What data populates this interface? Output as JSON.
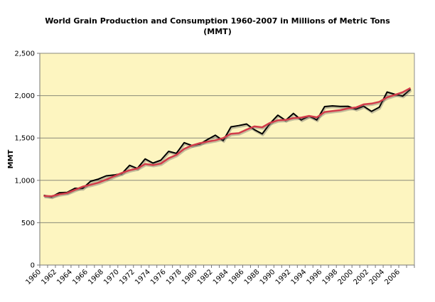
{
  "chart_data": {
    "type": "line",
    "title_line1": "World Grain Production and Consumption 1960-2007 in Millions of Metric Tons",
    "title_line2": "(MMT)",
    "xlabel": "",
    "ylabel": "MMT",
    "ylim": [
      0,
      2500
    ],
    "yticks": [
      0,
      500,
      1000,
      1500,
      2000,
      2500
    ],
    "ytick_labels": [
      "0",
      "500",
      "1,000",
      "1,500",
      "2,000",
      "2,500"
    ],
    "grid": true,
    "legend": "none",
    "colors": {
      "plot_background": "#fdf5c0",
      "gridline": "#8a8a7a",
      "production": "#000000",
      "consumption": "#d23c4a"
    },
    "x": [
      1960,
      1961,
      1962,
      1963,
      1964,
      1965,
      1966,
      1967,
      1968,
      1969,
      1970,
      1971,
      1972,
      1973,
      1974,
      1975,
      1976,
      1977,
      1978,
      1979,
      1980,
      1981,
      1982,
      1983,
      1984,
      1985,
      1986,
      1987,
      1988,
      1989,
      1990,
      1991,
      1992,
      1993,
      1994,
      1995,
      1996,
      1997,
      1998,
      1999,
      2000,
      2001,
      2002,
      2003,
      2004,
      2005,
      2006,
      2007
    ],
    "xtick_labels": [
      "1960",
      "1962",
      "1964",
      "1966",
      "1968",
      "1970",
      "1972",
      "1974",
      "1976",
      "1978",
      "1980",
      "1982",
      "1984",
      "1986",
      "1988",
      "1990",
      "1992",
      "1994",
      "1996",
      "1998",
      "2000",
      "2002",
      "2004",
      "2006"
    ],
    "series": [
      {
        "name": "Production",
        "values": [
          824,
          805,
          853,
          857,
          906,
          905,
          989,
          1014,
          1053,
          1063,
          1079,
          1177,
          1141,
          1253,
          1204,
          1237,
          1342,
          1319,
          1445,
          1411,
          1429,
          1482,
          1533,
          1469,
          1632,
          1647,
          1665,
          1598,
          1549,
          1671,
          1769,
          1708,
          1790,
          1713,
          1760,
          1713,
          1871,
          1879,
          1873,
          1874,
          1840,
          1875,
          1815,
          1863,
          2043,
          2016,
          1995,
          2075
        ]
      },
      {
        "name": "Consumption",
        "values": [
          816,
          813,
          835,
          850,
          888,
          926,
          948,
          972,
          1008,
          1048,
          1087,
          1119,
          1139,
          1193,
          1180,
          1198,
          1261,
          1300,
          1372,
          1412,
          1439,
          1457,
          1474,
          1499,
          1550,
          1557,
          1599,
          1637,
          1627,
          1679,
          1709,
          1713,
          1736,
          1741,
          1761,
          1744,
          1807,
          1818,
          1829,
          1850,
          1860,
          1897,
          1906,
          1927,
          1980,
          2009,
          2040,
          2090
        ]
      }
    ]
  }
}
